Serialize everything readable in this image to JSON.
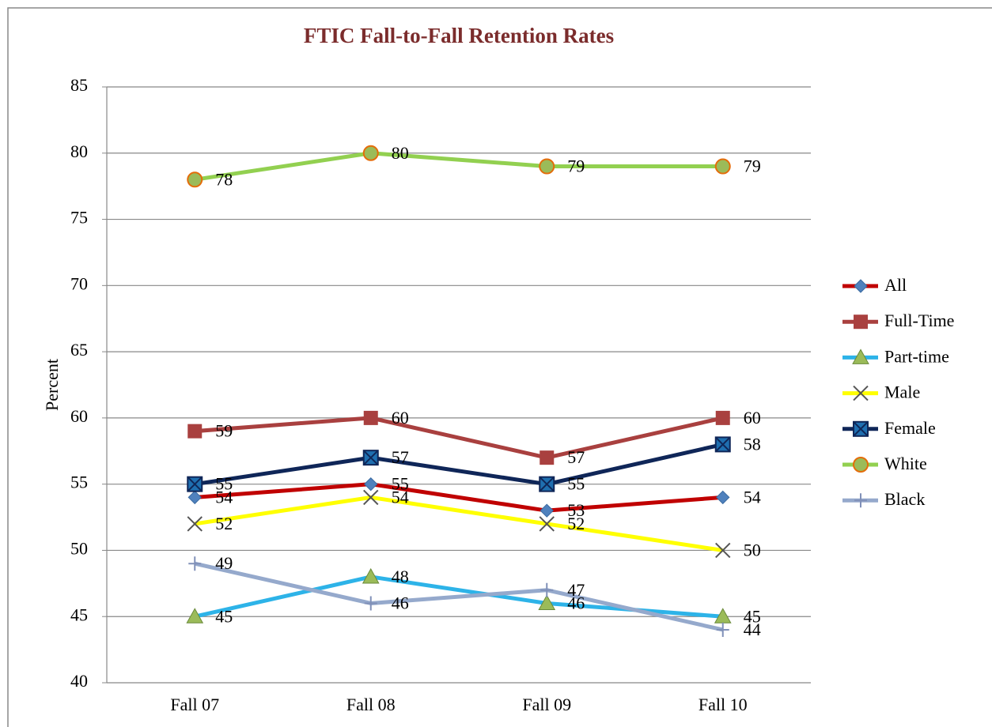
{
  "chart_data": {
    "type": "line",
    "title": "FTIC Fall-to-Fall Retention  Rates",
    "y_label": "Percent",
    "categories": [
      "Fall 07",
      "Fall 08",
      "Fall 09",
      "Fall 10"
    ],
    "ylim": [
      40,
      85
    ],
    "yticks": [
      40,
      45,
      50,
      55,
      60,
      65,
      70,
      75,
      80,
      85
    ],
    "grid": true,
    "legend": "right",
    "series": [
      {
        "name": "All",
        "color": "#c00000",
        "marker": "diamond",
        "marker_color": "#4f81bd",
        "values": [
          54,
          55,
          53,
          54
        ]
      },
      {
        "name": "Full-Time",
        "color": "#a9403f",
        "marker": "square",
        "marker_color": "#a9403f",
        "values": [
          59,
          60,
          57,
          60
        ]
      },
      {
        "name": "Part-time",
        "color": "#2db3e8",
        "marker": "triangle",
        "marker_color": "#9bbb59",
        "values": [
          45,
          48,
          46,
          45
        ]
      },
      {
        "name": "Male",
        "color": "#ffff00",
        "marker": "x",
        "marker_color": "#555555",
        "values": [
          52,
          54,
          52,
          50
        ]
      },
      {
        "name": "Female",
        "color": "#0f2658",
        "marker": "squarex",
        "marker_color": "#1f6fb0",
        "values": [
          55,
          57,
          55,
          58
        ]
      },
      {
        "name": "White",
        "color": "#92d050",
        "marker": "circle",
        "marker_color": "#9bbb59",
        "values": [
          78,
          80,
          79,
          79
        ]
      },
      {
        "name": "Black",
        "color": "#95a9cc",
        "marker": "plus",
        "marker_color": "#8090b8",
        "values": [
          49,
          46,
          47,
          44
        ]
      }
    ]
  }
}
